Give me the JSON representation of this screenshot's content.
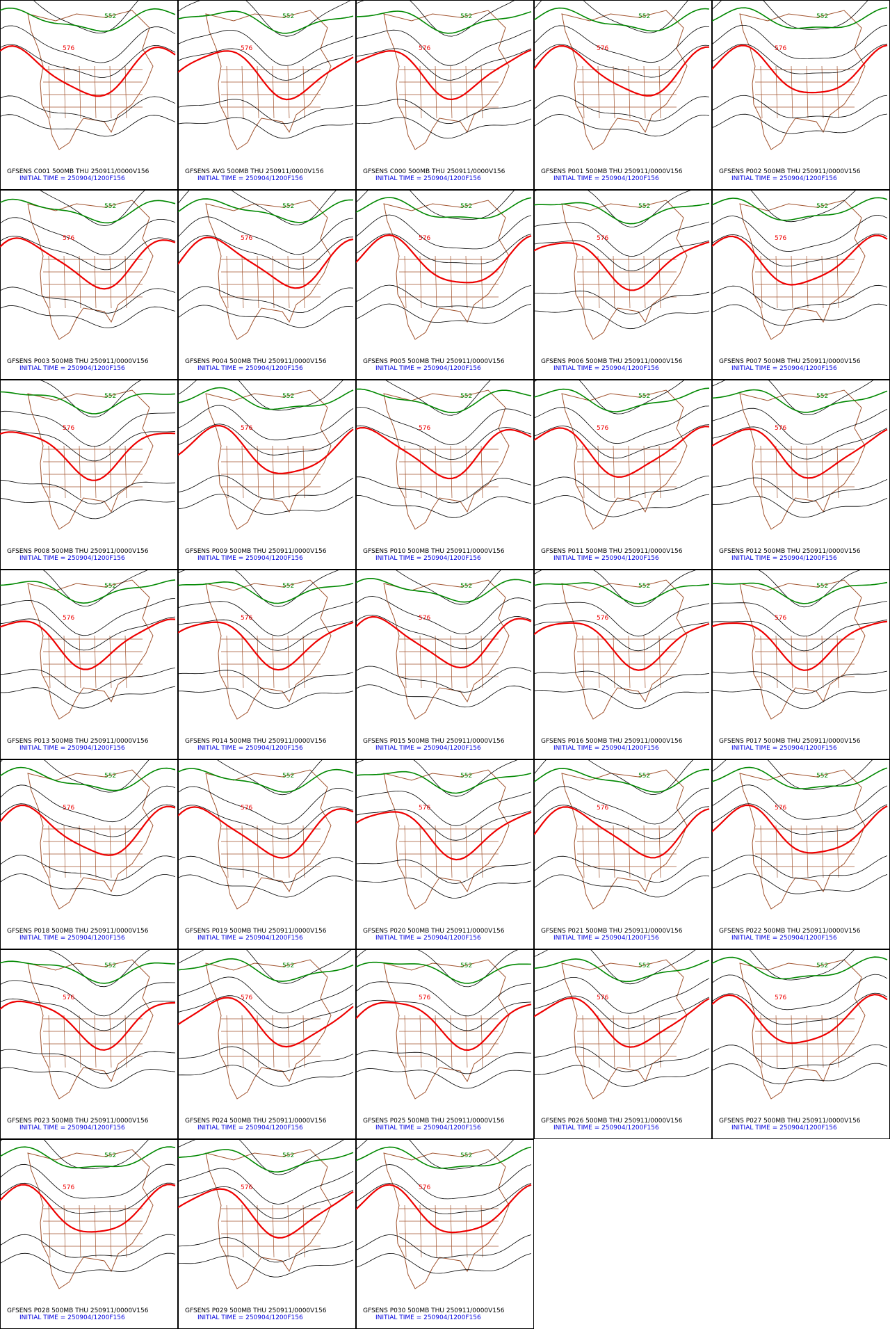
{
  "contours": [
    {
      "level": 576,
      "color": "#ee0000"
    },
    {
      "level": 552,
      "color": "#008800"
    }
  ],
  "panels": [
    {
      "title": "GFSENS C001 500MB THU 250911/0000V156",
      "time": "INITIAL TIME = 250904/1200F156"
    },
    {
      "title": "GFSENS AVG 500MB THU 250911/0000V156",
      "time": "INITIAL TIME = 250904/1200F156"
    },
    {
      "title": "GFSENS C000 500MB THU 250911/0000V156",
      "time": "INITIAL TIME = 250904/1200F156"
    },
    {
      "title": "GFSENS P001 500MB THU 250911/0000V156",
      "time": "INITIAL TIME = 250904/1200F156"
    },
    {
      "title": "GFSENS P002 500MB THU 250911/0000V156",
      "time": "INITIAL TIME = 250904/1200F156"
    },
    {
      "title": "GFSENS P003 500MB THU 250911/0000V156",
      "time": "INITIAL TIME = 250904/1200F156"
    },
    {
      "title": "GFSENS P004 500MB THU 250911/0000V156",
      "time": "INITIAL TIME = 250904/1200F156"
    },
    {
      "title": "GFSENS P005 500MB THU 250911/0000V156",
      "time": "INITIAL TIME = 250904/1200F156"
    },
    {
      "title": "GFSENS P006 500MB THU 250911/0000V156",
      "time": "INITIAL TIME = 250904/1200F156"
    },
    {
      "title": "GFSENS P007 500MB THU 250911/0000V156",
      "time": "INITIAL TIME = 250904/1200F156"
    },
    {
      "title": "GFSENS P008 500MB THU 250911/0000V156",
      "time": "INITIAL TIME = 250904/1200F156"
    },
    {
      "title": "GFSENS P009 500MB THU 250911/0000V156",
      "time": "INITIAL TIME = 250904/1200F156"
    },
    {
      "title": "GFSENS P010 500MB THU 250911/0000V156",
      "time": "INITIAL TIME = 250904/1200F156"
    },
    {
      "title": "GFSENS P011 500MB THU 250911/0000V156",
      "time": "INITIAL TIME = 250904/1200F156"
    },
    {
      "title": "GFSENS P012 500MB THU 250911/0000V156",
      "time": "INITIAL TIME = 250904/1200F156"
    },
    {
      "title": "GFSENS P013 500MB THU 250911/0000V156",
      "time": "INITIAL TIME = 250904/1200F156"
    },
    {
      "title": "GFSENS P014 500MB THU 250911/0000V156",
      "time": "INITIAL TIME = 250904/1200F156"
    },
    {
      "title": "GFSENS P015 500MB THU 250911/0000V156",
      "time": "INITIAL TIME = 250904/1200F156"
    },
    {
      "title": "GFSENS P016 500MB THU 250911/0000V156",
      "time": "INITIAL TIME = 250904/1200F156"
    },
    {
      "title": "GFSENS P017 500MB THU 250911/0000V156",
      "time": "INITIAL TIME = 250904/1200F156"
    },
    {
      "title": "GFSENS P018 500MB THU 250911/0000V156",
      "time": "INITIAL TIME = 250904/1200F156"
    },
    {
      "title": "GFSENS P019 500MB THU 250911/0000V156",
      "time": "INITIAL TIME = 250904/1200F156"
    },
    {
      "title": "GFSENS P020 500MB THU 250911/0000V156",
      "time": "INITIAL TIME = 250904/1200F156"
    },
    {
      "title": "GFSENS P021 500MB THU 250911/0000V156",
      "time": "INITIAL TIME = 250904/1200F156"
    },
    {
      "title": "GFSENS P022 500MB THU 250911/0000V156",
      "time": "INITIAL TIME = 250904/1200F156"
    },
    {
      "title": "GFSENS P023 500MB THU 250911/0000V156",
      "time": "INITIAL TIME = 250904/1200F156"
    },
    {
      "title": "GFSENS P024 500MB THU 250911/0000V156",
      "time": "INITIAL TIME = 250904/1200F156"
    },
    {
      "title": "GFSENS P025 500MB THU 250911/0000V156",
      "time": "INITIAL TIME = 250904/1200F156"
    },
    {
      "title": "GFSENS P026 500MB THU 250911/0000V156",
      "time": "INITIAL TIME = 250904/1200F156"
    },
    {
      "title": "GFSENS P027 500MB THU 250911/0000V156",
      "time": "INITIAL TIME = 250904/1200F156"
    },
    {
      "title": "GFSENS P028 500MB THU 250911/0000V156",
      "time": "INITIAL TIME = 250904/1200F156"
    },
    {
      "title": "GFSENS P029 500MB THU 250911/0000V156",
      "time": "INITIAL TIME = 250904/1200F156"
    },
    {
      "title": "GFSENS P030 500MB THU 250911/0000V156",
      "time": "INITIAL TIME = 250904/1200F156"
    }
  ]
}
